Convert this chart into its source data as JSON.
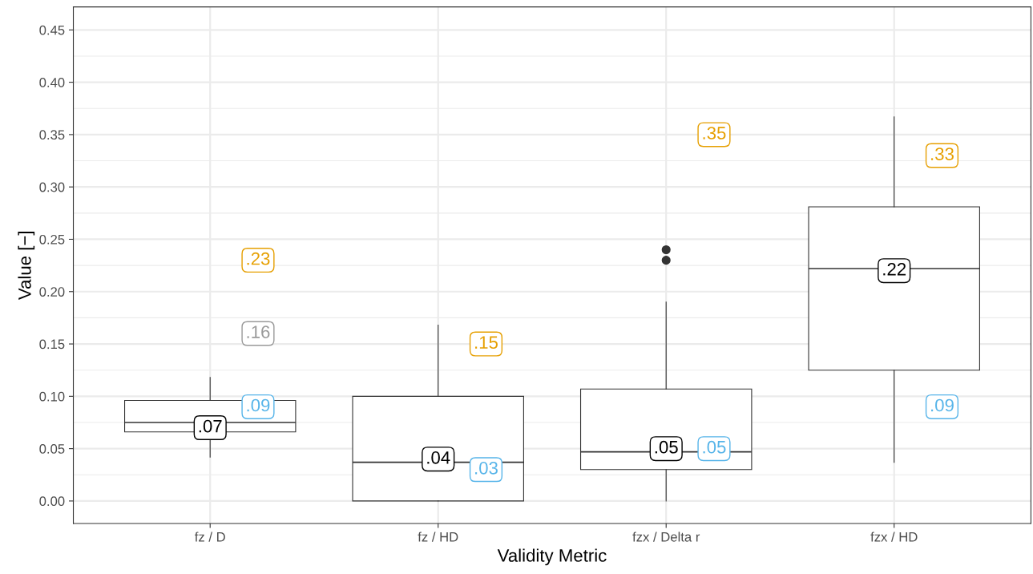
{
  "chart_data": {
    "type": "box",
    "xlabel": "Validity Metric",
    "ylabel": "Value [−]",
    "categories": [
      "fz / D",
      "fz / HD",
      "fzx / Delta r",
      "fzx / HD"
    ],
    "boxes": [
      {
        "low": 0.042,
        "q1": 0.066,
        "median": 0.075,
        "q3": 0.096,
        "high": 0.118
      },
      {
        "low": 0.0,
        "q1": 0.0,
        "median": 0.037,
        "q3": 0.1,
        "high": 0.168
      },
      {
        "low": 0.0,
        "q1": 0.03,
        "median": 0.047,
        "q3": 0.107,
        "high": 0.19,
        "outliers": [
          0.23,
          0.24
        ]
      },
      {
        "low": 0.037,
        "q1": 0.125,
        "median": 0.222,
        "q3": 0.281,
        "high": 0.367
      }
    ],
    "series": [
      {
        "type": "scatter",
        "color": "#000000",
        "values": [
          0.07,
          0.04,
          0.05,
          0.22
        ],
        "value_labels": [
          ".07",
          ".04",
          ".05",
          ".22"
        ]
      },
      {
        "type": "scatter",
        "color": "#e69f00",
        "values": [
          0.23,
          0.15,
          0.35,
          0.33
        ],
        "value_labels": [
          ".23",
          ".15",
          ".35",
          ".33"
        ]
      },
      {
        "type": "scatter",
        "color": "#999999",
        "values": [
          0.16,
          null,
          null,
          null
        ],
        "value_labels": [
          ".16",
          null,
          null,
          null
        ]
      },
      {
        "type": "scatter",
        "color": "#56b4e9",
        "values": [
          0.09,
          0.03,
          0.05,
          0.09
        ],
        "value_labels": [
          ".09",
          ".03",
          ".05",
          ".09"
        ]
      }
    ],
    "ylim": [
      -0.0215,
      0.472
    ],
    "yticks": [
      {
        "value": 0,
        "label": "0.00"
      },
      {
        "value": 0.05,
        "label": "0.05"
      },
      {
        "value": 0.1,
        "label": "0.10"
      },
      {
        "value": 0.15,
        "label": "0.15"
      },
      {
        "value": 0.2,
        "label": "0.20"
      },
      {
        "value": 0.25,
        "label": "0.25"
      },
      {
        "value": 0.3,
        "label": "0.30"
      },
      {
        "value": 0.35,
        "label": "0.35"
      },
      {
        "value": 0.4,
        "label": "0.40"
      },
      {
        "value": 0.45,
        "label": "0.45"
      }
    ],
    "grid": true
  }
}
